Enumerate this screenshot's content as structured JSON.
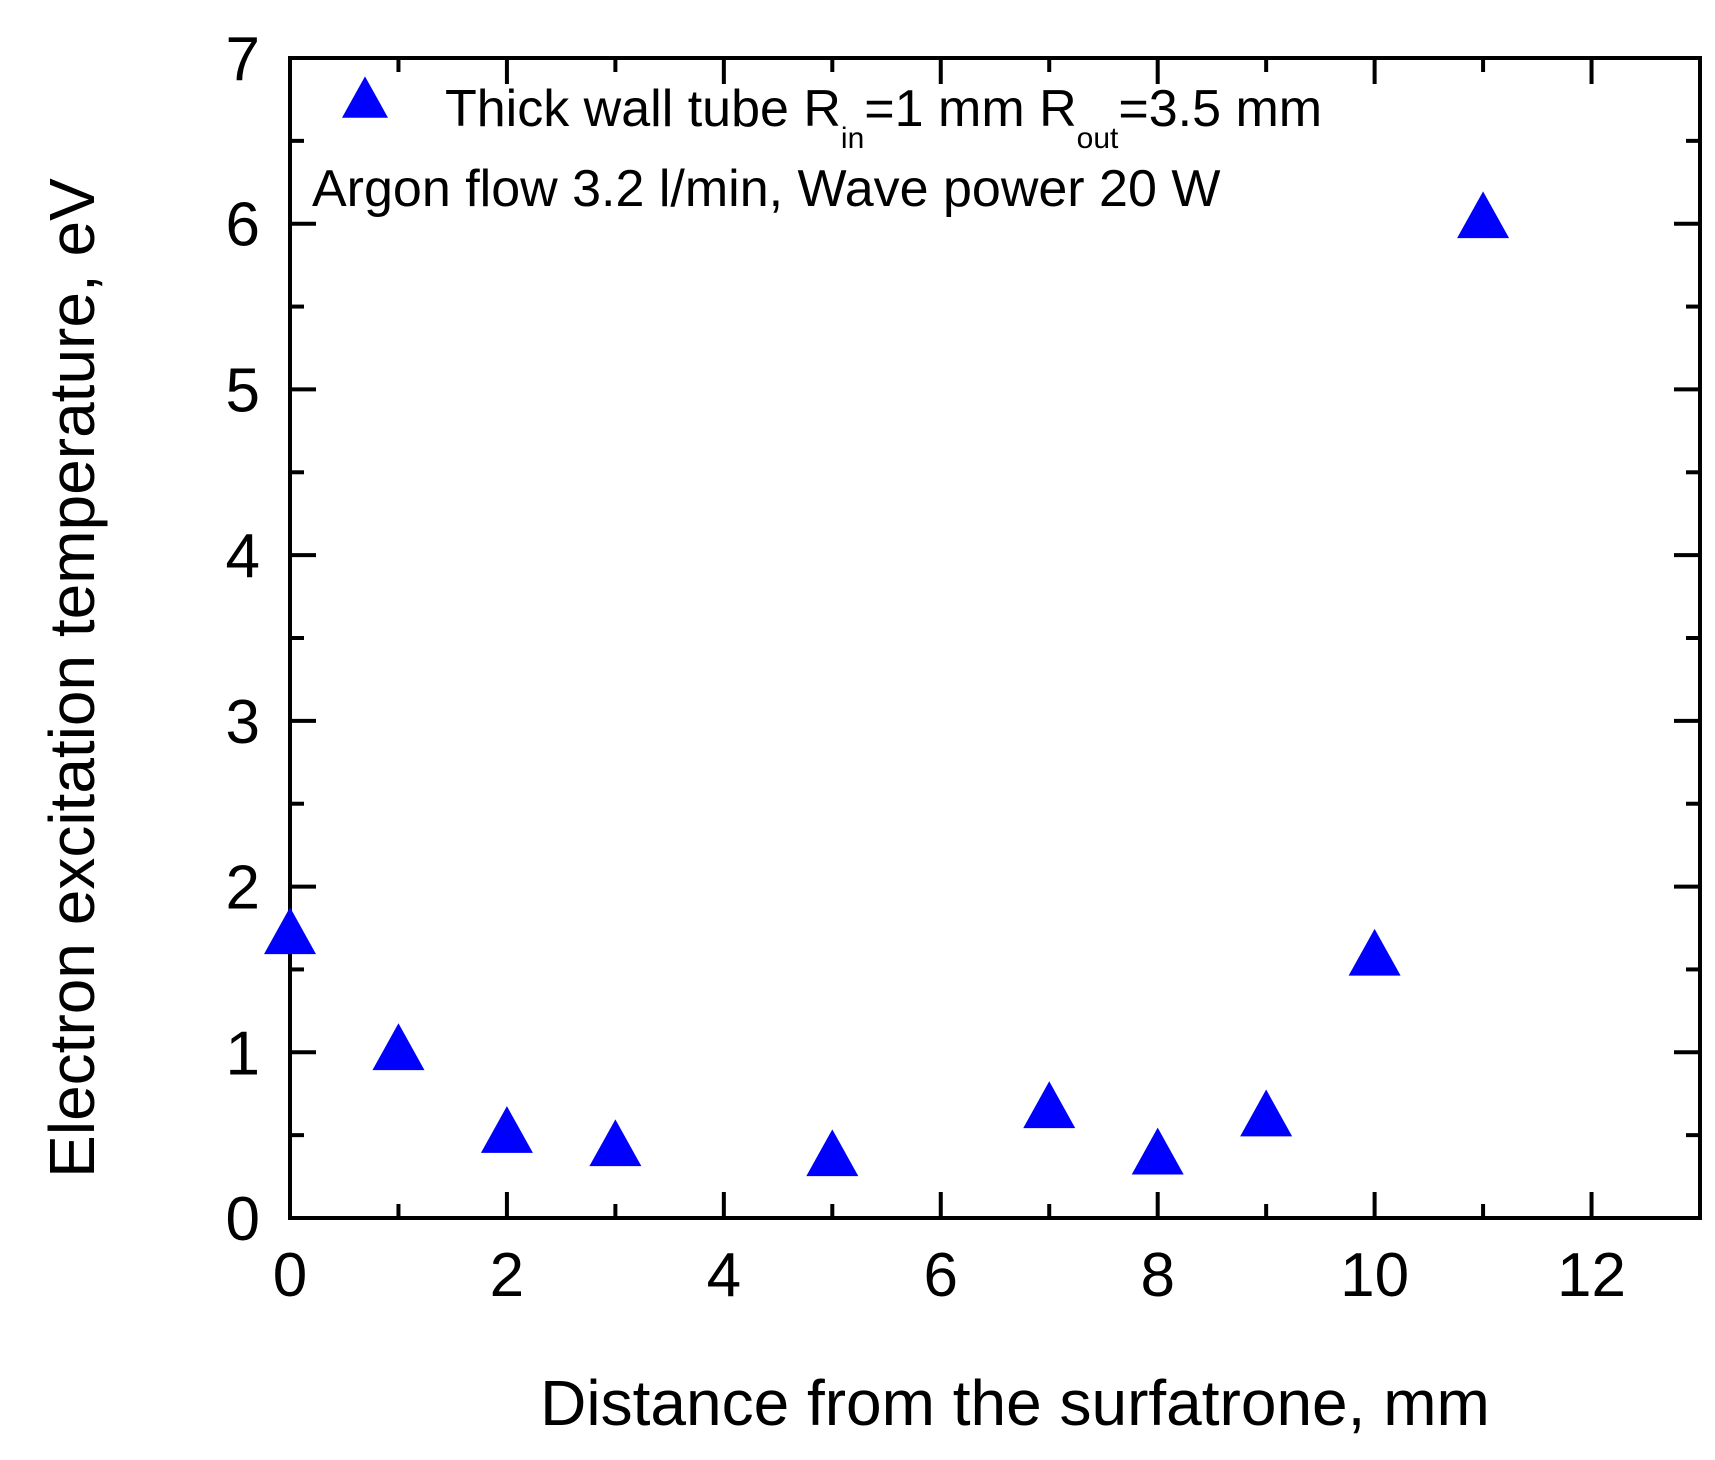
{
  "chart_data": {
    "type": "scatter",
    "title": "",
    "xlabel": "Distance from the surfatrone, mm",
    "ylabel": "Electron excitation temperature, eV",
    "xlim": [
      0,
      13
    ],
    "ylim": [
      0,
      7
    ],
    "xticks": [
      0,
      2,
      4,
      6,
      8,
      10,
      12
    ],
    "yticks": [
      0,
      1,
      2,
      3,
      4,
      5,
      6,
      7
    ],
    "grid": false,
    "legend_position": "top-left",
    "marker": "triangle",
    "marker_color": "#0000ff",
    "series": [
      {
        "name": "Thick wall tube R_in=1 mm R_out=3.5 mm",
        "x": [
          0,
          1,
          2,
          3,
          5,
          7,
          8,
          9,
          10,
          11
        ],
        "y": [
          1.7,
          1.0,
          0.5,
          0.42,
          0.36,
          0.65,
          0.37,
          0.6,
          1.57,
          6.02
        ]
      }
    ],
    "legend": {
      "part1": "Thick wall tube R",
      "sub1": "in",
      "part2": "=1 mm R",
      "sub2": "out",
      "part3": "=3.5 mm"
    },
    "annotation": "Argon flow 3.2 l/min, Wave power 20 W"
  }
}
